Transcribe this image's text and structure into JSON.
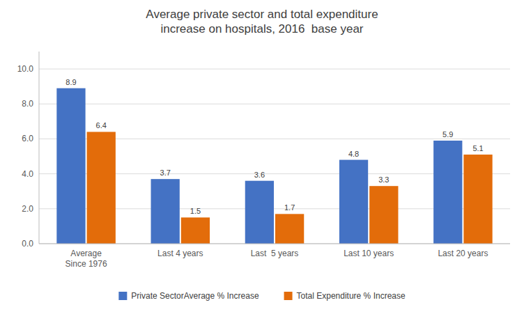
{
  "chart_data": {
    "type": "bar",
    "title": "Average private sector and total expenditure\nincrease on hospitals, 2016  base year",
    "categories": [
      "Average\nSince 1976",
      "Last 4 years",
      "Last  5 years",
      "Last 10 years",
      "Last 20 years"
    ],
    "series": [
      {
        "name": "Private SectorAverage % Increase",
        "color": "#4472C4",
        "values": [
          8.9,
          3.7,
          3.6,
          4.8,
          5.9
        ]
      },
      {
        "name": "Total Expenditure % Increase",
        "color": "#E36C0A",
        "values": [
          6.4,
          1.5,
          1.7,
          3.3,
          5.1
        ]
      }
    ],
    "ylim": [
      0,
      11
    ],
    "yticks": [
      {
        "value": 0.0,
        "label": "0.0"
      },
      {
        "value": 2.0,
        "label": "2.0"
      },
      {
        "value": 4.0,
        "label": "4.0"
      },
      {
        "value": 6.0,
        "label": "6.0"
      },
      {
        "value": 8.0,
        "label": "8.0"
      },
      {
        "value": 10.0,
        "label": "10.0"
      }
    ],
    "grid": true,
    "legend": "bottom",
    "data_labels": true
  }
}
